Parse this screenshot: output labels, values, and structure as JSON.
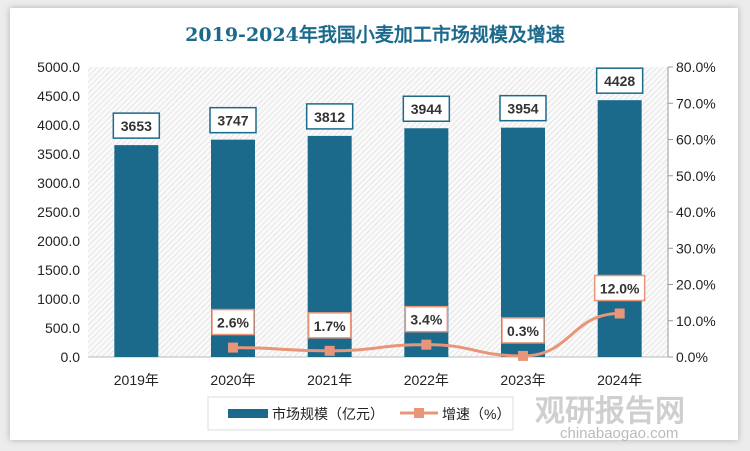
{
  "chart_data": {
    "type": "bar+line",
    "title": "2019-2024年我国小麦加工市场规模及增速",
    "categories": [
      "2019年",
      "2020年",
      "2021年",
      "2022年",
      "2023年",
      "2024年"
    ],
    "series": [
      {
        "name": "市场规模（亿元）",
        "type": "bar",
        "axis": "left",
        "values": [
          3653,
          3747,
          3812,
          3944,
          3954,
          4428
        ],
        "labels": [
          "3653",
          "3747",
          "3812",
          "3944",
          "3954",
          "4428"
        ],
        "color": "#1b6a8c"
      },
      {
        "name": "增速（%）",
        "type": "line",
        "axis": "right",
        "values": [
          null,
          2.6,
          1.7,
          3.4,
          0.3,
          12.0
        ],
        "labels": [
          "",
          "2.6%",
          "1.7%",
          "3.4%",
          "0.3%",
          "12.0%"
        ],
        "color": "#e8957a"
      }
    ],
    "y_left": {
      "range": [
        0,
        5000
      ],
      "ticks": [
        "0.0",
        "500.0",
        "1000.0",
        "1500.0",
        "2000.0",
        "2500.0",
        "3000.0",
        "3500.0",
        "4000.0",
        "4500.0",
        "5000.0"
      ]
    },
    "y_right": {
      "range": [
        0,
        80
      ],
      "ticks": [
        "0.0%",
        "10.0%",
        "20.0%",
        "30.0%",
        "40.0%",
        "50.0%",
        "60.0%",
        "70.0%",
        "80.0%"
      ]
    },
    "legend": "bottom",
    "grid": false
  },
  "watermark": {
    "name": "观研报告网",
    "domain": "chinabaogao.com"
  }
}
